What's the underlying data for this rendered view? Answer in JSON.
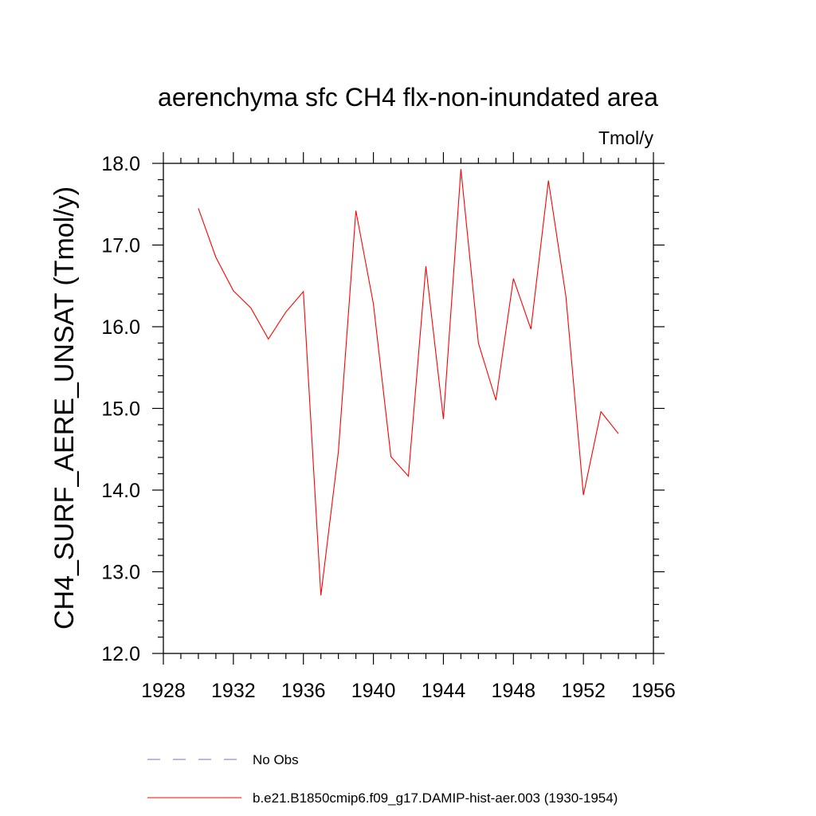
{
  "chart_data": {
    "type": "line",
    "title": "aerenchyma sfc CH4 flx-non-inundated area",
    "units_label": "Tmol/y",
    "ylabel": "CH4_SURF_AERE_UNSAT  (Tmol/y)",
    "xlabel": "",
    "xlim": [
      1928,
      1956
    ],
    "ylim": [
      12.0,
      18.0
    ],
    "x_ticks": [
      "1928",
      "1932",
      "1936",
      "1940",
      "1944",
      "1948",
      "1952",
      "1956"
    ],
    "y_ticks": [
      "12.0",
      "13.0",
      "14.0",
      "15.0",
      "16.0",
      "17.0",
      "18.0"
    ],
    "grid": false,
    "legend_position": "bottom",
    "series": [
      {
        "name": "No Obs",
        "color": "#7b6fd0",
        "dash": true,
        "x": [],
        "values": []
      },
      {
        "name": "b.e21.B1850cmip6.f09_g17.DAMIP-hist-aer.003 (1930-1954)",
        "color": "#ff0000",
        "dash": false,
        "x": [
          1930,
          1931,
          1932,
          1933,
          1934,
          1935,
          1936,
          1937,
          1938,
          1939,
          1940,
          1941,
          1942,
          1943,
          1944,
          1945,
          1946,
          1947,
          1948,
          1949,
          1950,
          1951,
          1952,
          1953,
          1954
        ],
        "values": [
          17.45,
          16.85,
          16.44,
          16.23,
          15.85,
          16.18,
          16.43,
          12.71,
          14.47,
          17.42,
          16.28,
          14.41,
          14.17,
          16.74,
          14.87,
          17.93,
          15.8,
          15.1,
          16.59,
          15.97,
          17.79,
          16.37,
          13.94,
          14.96,
          14.69
        ]
      }
    ]
  }
}
